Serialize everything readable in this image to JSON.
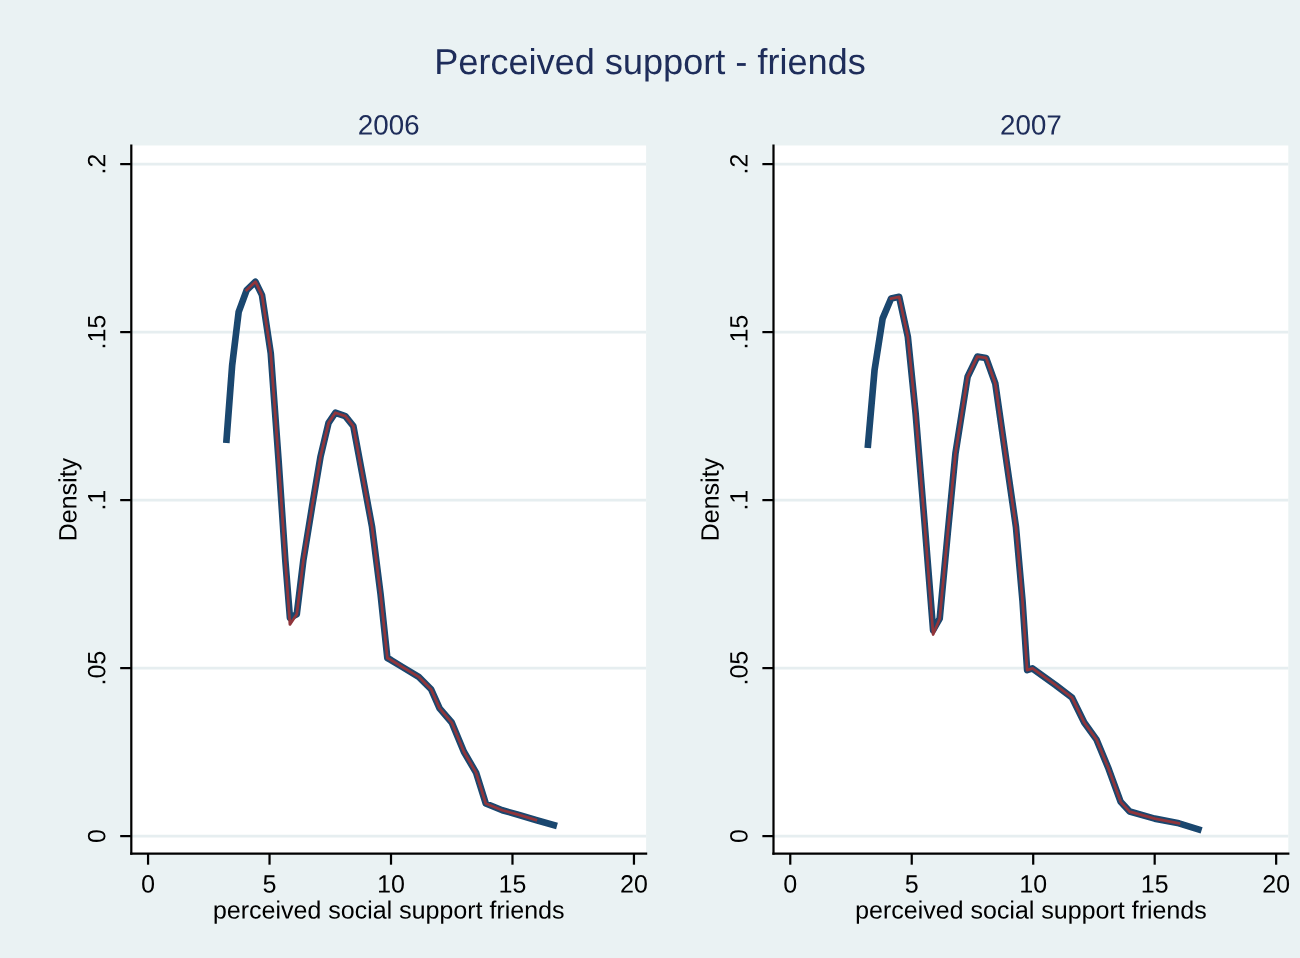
{
  "chart_data": [
    {
      "type": "line",
      "title": "Perceived support - friends",
      "subtitle": "2006",
      "xlabel": "perceived social support friends",
      "ylabel": "Density",
      "grid": "y",
      "xlim": [
        -0.69,
        20.5
      ],
      "ylim": [
        -0.0052,
        0.2055
      ],
      "xticks": [
        0,
        5,
        10,
        15,
        20
      ],
      "yticks": [
        0,
        {
          "value": 0.05,
          "label": ".05"
        },
        {
          "value": 0.1,
          "label": ".1"
        },
        {
          "value": 0.15,
          "label": ".15"
        },
        {
          "value": 0.2,
          "label": ".2"
        }
      ],
      "series": [
        {
          "color": "#1a476f",
          "x": [
            3.23,
            3.46,
            3.73,
            4.06,
            4.42,
            4.69,
            5.05,
            5.37,
            5.65,
            5.84,
            6.12,
            6.39,
            6.75,
            7.1,
            7.43,
            7.71,
            8.12,
            8.45,
            8.81,
            9.22,
            9.57,
            9.85,
            10.0,
            10.45,
            11.14,
            11.65,
            12.0,
            12.5,
            13.0,
            13.5,
            13.9,
            14.58,
            15.27,
            15.96,
            16.7
          ],
          "values": [
            0.118,
            0.14,
            0.156,
            0.1625,
            0.165,
            0.161,
            0.1437,
            0.112,
            0.082,
            0.065,
            0.066,
            0.082,
            0.098,
            0.113,
            0.123,
            0.126,
            0.125,
            0.122,
            0.108,
            0.092,
            0.072,
            0.053,
            0.0524,
            0.0504,
            0.0474,
            0.0437,
            0.038,
            0.0338,
            0.0251,
            0.0189,
            0.0097,
            0.0077,
            0.0063,
            0.0048,
            0.0033
          ]
        },
        {
          "color": "#90353b",
          "x": [
            4.06,
            4.42,
            4.69,
            5.05,
            5.37,
            5.65,
            5.84,
            6.12,
            6.39,
            6.75,
            7.1,
            7.43,
            7.71,
            8.12,
            8.45,
            8.81,
            9.22,
            9.57,
            9.85,
            10.0,
            10.45,
            11.14,
            11.65,
            12.0,
            12.5,
            13.0,
            13.5,
            13.9,
            14.58,
            15.27,
            15.96
          ],
          "values": [
            0.1625,
            0.165,
            0.161,
            0.1437,
            0.112,
            0.082,
            0.063,
            0.066,
            0.082,
            0.098,
            0.113,
            0.123,
            0.126,
            0.125,
            0.122,
            0.108,
            0.092,
            0.072,
            0.053,
            0.0524,
            0.0504,
            0.0474,
            0.0437,
            0.038,
            0.0338,
            0.0251,
            0.0189,
            0.0097,
            0.0077,
            0.0063,
            0.0048
          ]
        }
      ]
    },
    {
      "type": "line",
      "subtitle": "2007",
      "xlabel": "perceived social support friends",
      "ylabel": "Density",
      "grid": "y",
      "xlim": [
        -0.69,
        20.5
      ],
      "ylim": [
        -0.0052,
        0.2055
      ],
      "xticks": [
        0,
        5,
        10,
        15,
        20
      ],
      "yticks": [
        0,
        {
          "value": 0.05,
          "label": ".05"
        },
        {
          "value": 0.1,
          "label": ".1"
        },
        {
          "value": 0.15,
          "label": ".15"
        },
        {
          "value": 0.2,
          "label": ".2"
        }
      ],
      "series": [
        {
          "color": "#1a476f",
          "x": [
            3.2,
            3.47,
            3.8,
            4.15,
            4.48,
            4.84,
            5.16,
            5.52,
            5.88,
            6.15,
            6.48,
            6.8,
            7.3,
            7.7,
            8.06,
            8.44,
            8.93,
            9.29,
            9.56,
            9.75,
            9.97,
            10.93,
            11.6,
            12.1,
            12.6,
            13.1,
            13.6,
            13.97,
            15.0,
            16.0,
            16.8
          ],
          "values": [
            0.1165,
            0.1387,
            0.154,
            0.16,
            0.1605,
            0.1486,
            0.1258,
            0.094,
            0.0613,
            0.0647,
            0.09,
            0.1139,
            0.1367,
            0.1427,
            0.1423,
            0.1347,
            0.11,
            0.092,
            0.07,
            0.0494,
            0.0499,
            0.0449,
            0.0412,
            0.0338,
            0.0288,
            0.0201,
            0.0102,
            0.0073,
            0.0052,
            0.0038,
            0.002
          ]
        },
        {
          "color": "#90353b",
          "x": [
            4.15,
            4.48,
            4.84,
            5.16,
            5.52,
            5.88,
            6.15,
            6.48,
            6.8,
            7.3,
            7.7,
            8.06,
            8.44,
            8.93,
            9.29,
            9.56,
            9.75,
            9.97,
            10.93,
            11.6,
            12.1,
            12.6,
            13.1,
            13.6,
            13.97,
            15.0,
            16.0
          ],
          "values": [
            0.16,
            0.1605,
            0.1486,
            0.1258,
            0.094,
            0.06,
            0.0647,
            0.09,
            0.1139,
            0.1367,
            0.1427,
            0.1423,
            0.1347,
            0.11,
            0.092,
            0.07,
            0.0494,
            0.0499,
            0.0449,
            0.0412,
            0.0338,
            0.0288,
            0.0201,
            0.0102,
            0.0073,
            0.0052,
            0.0038
          ]
        }
      ]
    }
  ]
}
